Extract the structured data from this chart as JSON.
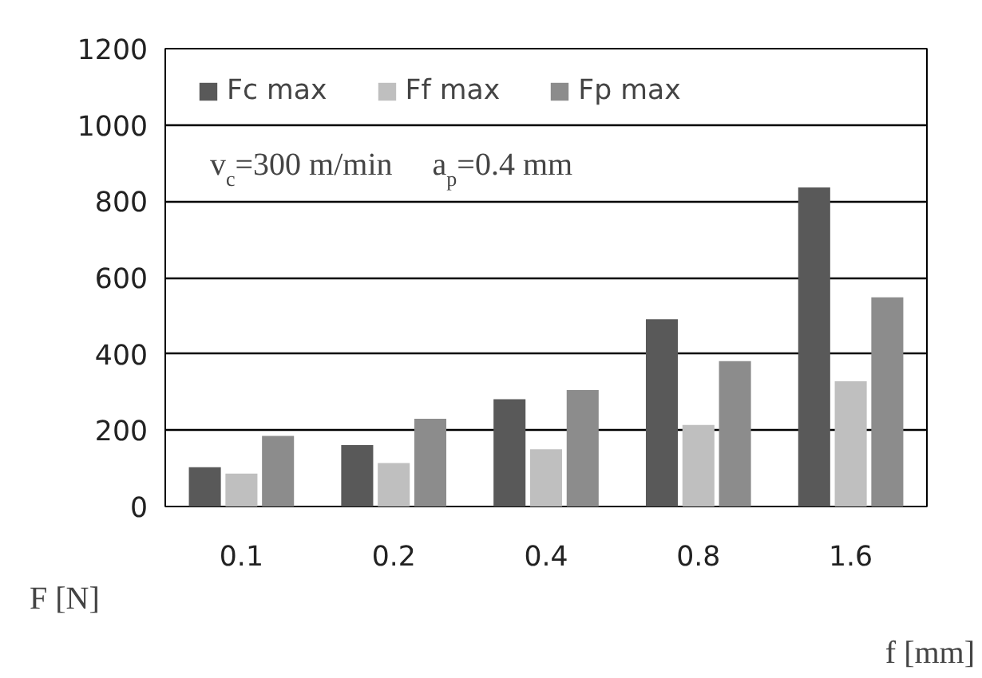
{
  "chart_data": {
    "type": "bar",
    "categories": [
      "0.1",
      "0.2",
      "0.4",
      "0.8",
      "1.6"
    ],
    "series": [
      {
        "name": "Fc max",
        "color": "#595959",
        "values": [
          103,
          161,
          281,
          491,
          836
        ]
      },
      {
        "name": "Ff max",
        "color": "#bfbfbf",
        "values": [
          86,
          114,
          150,
          214,
          328
        ]
      },
      {
        "name": "Fp max",
        "color": "#8c8c8c",
        "values": [
          185,
          230,
          305,
          381,
          548
        ]
      }
    ],
    "xlabel": "f [mm]",
    "ylabel": "F [N]",
    "annotations": [
      "v$_{c}$=300 m/min     a$_{p}$=0.4 mm"
    ],
    "ylim": [
      0,
      1200
    ],
    "yticks": [
      0,
      200,
      400,
      600,
      800,
      1000,
      1200
    ],
    "grid": "y",
    "legend": "top"
  }
}
